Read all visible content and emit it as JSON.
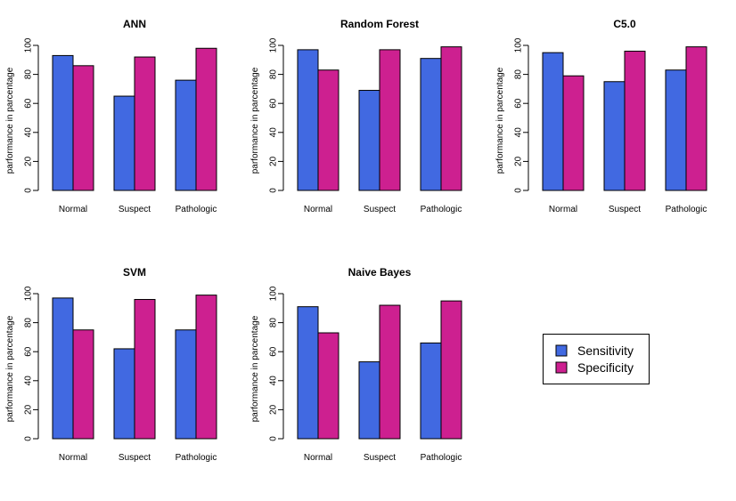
{
  "legend": {
    "entries": [
      {
        "label": "Sensitivity",
        "color": "#4169E1"
      },
      {
        "label": "Specificity",
        "color": "#CD2090"
      }
    ]
  },
  "chart_data": [
    {
      "type": "bar",
      "title": "ANN",
      "ylabel": "parformance in parcentage",
      "categories": [
        "Normal",
        "Suspect",
        "Pathologic"
      ],
      "series": [
        {
          "name": "Sensitivity",
          "values": [
            93,
            65,
            76
          ]
        },
        {
          "name": "Specificity",
          "values": [
            86,
            92,
            98
          ]
        }
      ],
      "ylim": [
        0,
        100
      ],
      "yticks": [
        0,
        20,
        40,
        60,
        80,
        100
      ]
    },
    {
      "type": "bar",
      "title": "Random Forest",
      "ylabel": "parformance in parcentage",
      "categories": [
        "Normal",
        "Suspect",
        "Pathologic"
      ],
      "series": [
        {
          "name": "Sensitivity",
          "values": [
            97,
            69,
            91
          ]
        },
        {
          "name": "Specificity",
          "values": [
            83,
            97,
            99
          ]
        }
      ],
      "ylim": [
        0,
        100
      ],
      "yticks": [
        0,
        20,
        40,
        60,
        80,
        100
      ]
    },
    {
      "type": "bar",
      "title": "C5.0",
      "ylabel": "parformance in parcentage",
      "categories": [
        "Normal",
        "Suspect",
        "Pathologic"
      ],
      "series": [
        {
          "name": "Sensitivity",
          "values": [
            95,
            75,
            83
          ]
        },
        {
          "name": "Specificity",
          "values": [
            79,
            96,
            99
          ]
        }
      ],
      "ylim": [
        0,
        100
      ],
      "yticks": [
        0,
        20,
        40,
        60,
        80,
        100
      ]
    },
    {
      "type": "bar",
      "title": "SVM",
      "ylabel": "parformance in parcentage",
      "categories": [
        "Normal",
        "Suspect",
        "Pathologic"
      ],
      "series": [
        {
          "name": "Sensitivity",
          "values": [
            97,
            62,
            75
          ]
        },
        {
          "name": "Specificity",
          "values": [
            75,
            96,
            99
          ]
        }
      ],
      "ylim": [
        0,
        100
      ],
      "yticks": [
        0,
        20,
        40,
        60,
        80,
        100
      ]
    },
    {
      "type": "bar",
      "title": "Naive Bayes",
      "ylabel": "parformance in parcentage",
      "categories": [
        "Normal",
        "Suspect",
        "Pathologic"
      ],
      "series": [
        {
          "name": "Sensitivity",
          "values": [
            91,
            53,
            66
          ]
        },
        {
          "name": "Specificity",
          "values": [
            73,
            92,
            95
          ]
        }
      ],
      "ylim": [
        0,
        100
      ],
      "yticks": [
        0,
        20,
        40,
        60,
        80,
        100
      ]
    }
  ]
}
